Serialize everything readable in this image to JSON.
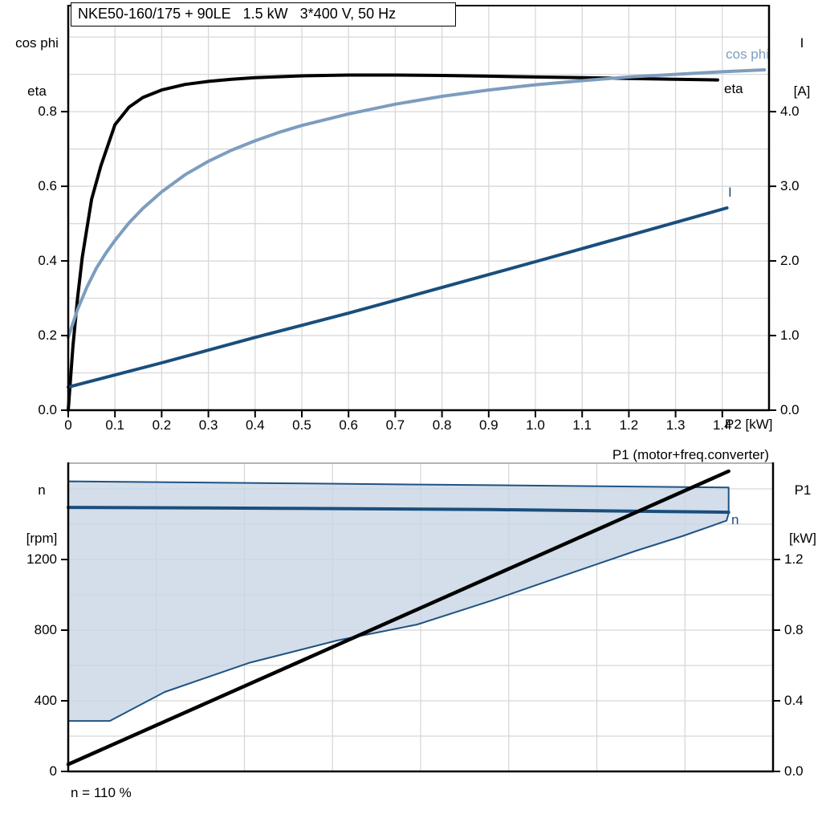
{
  "title": "NKE50-160/175 + 90LE   1.5 kW   3*400 V, 50 Hz",
  "footer_note": "n = 110 %",
  "colors": {
    "black": "#000000",
    "navy": "#1a4e7c",
    "steel": "#7d9dbe",
    "region_fill": "#c8d6e5",
    "region_edge": "#1f5382",
    "grid": "#d8d8d8",
    "chart2_top_border": "#9a9a9a"
  },
  "chart_data": [
    {
      "type": "line",
      "title": "NKE50-160/175 + 90LE   1.5 kW   3*400 V, 50 Hz",
      "x_axis": {
        "label": "P2 [kW]",
        "min": 0,
        "max": 1.5,
        "grid_step": 0.1,
        "tick_values": [
          0,
          0.1,
          0.2,
          0.3,
          0.4,
          0.5,
          0.6,
          0.7,
          0.8,
          0.9,
          1.0,
          1.1,
          1.2,
          1.3,
          1.4
        ],
        "tick_labels": [
          "0",
          "0.1",
          "0.2",
          "0.3",
          "0.4",
          "0.5",
          "0.6",
          "0.7",
          "0.8",
          "0.9",
          "1.0",
          "1.1",
          "1.2",
          "1.3",
          "1.4"
        ]
      },
      "y_left": {
        "header": [
          "cos phi",
          "eta"
        ],
        "min": 0,
        "max": 1.082,
        "grid_step": 0.1,
        "tick_values": [
          0,
          0.2,
          0.4,
          0.6,
          0.8
        ],
        "tick_labels": [
          "0.0",
          "0.2",
          "0.4",
          "0.6",
          "0.8"
        ]
      },
      "y_right": {
        "header": [
          "I",
          "[A]"
        ],
        "min": 0,
        "max": 5.41,
        "tick_values": [
          0,
          1,
          2,
          3,
          4
        ],
        "tick_labels": [
          "0.0",
          "1.0",
          "2.0",
          "3.0",
          "4.0"
        ]
      },
      "series": [
        {
          "name": "eta",
          "label": "eta",
          "axis": "left",
          "color": "black",
          "width": 4,
          "points": [
            [
              0,
              0
            ],
            [
              0.01,
              0.17
            ],
            [
              0.02,
              0.3
            ],
            [
              0.03,
              0.41
            ],
            [
              0.05,
              0.565
            ],
            [
              0.07,
              0.655
            ],
            [
              0.1,
              0.765
            ],
            [
              0.13,
              0.812
            ],
            [
              0.16,
              0.838
            ],
            [
              0.2,
              0.858
            ],
            [
              0.25,
              0.873
            ],
            [
              0.3,
              0.881
            ],
            [
              0.35,
              0.887
            ],
            [
              0.4,
              0.891
            ],
            [
              0.5,
              0.896
            ],
            [
              0.6,
              0.898
            ],
            [
              0.7,
              0.898
            ],
            [
              0.8,
              0.897
            ],
            [
              0.9,
              0.895
            ],
            [
              1.0,
              0.893
            ],
            [
              1.1,
              0.891
            ],
            [
              1.2,
              0.889
            ],
            [
              1.3,
              0.887
            ],
            [
              1.39,
              0.885
            ]
          ]
        },
        {
          "name": "cos-phi",
          "label": "cos phi",
          "axis": "left",
          "color": "steel",
          "width": 4,
          "points": [
            [
              0,
              0.195
            ],
            [
              0.02,
              0.27
            ],
            [
              0.04,
              0.33
            ],
            [
              0.06,
              0.38
            ],
            [
              0.08,
              0.42
            ],
            [
              0.1,
              0.455
            ],
            [
              0.13,
              0.502
            ],
            [
              0.16,
              0.541
            ],
            [
              0.2,
              0.585
            ],
            [
              0.25,
              0.631
            ],
            [
              0.3,
              0.667
            ],
            [
              0.35,
              0.697
            ],
            [
              0.4,
              0.722
            ],
            [
              0.45,
              0.744
            ],
            [
              0.5,
              0.763
            ],
            [
              0.6,
              0.794
            ],
            [
              0.7,
              0.82
            ],
            [
              0.8,
              0.841
            ],
            [
              0.9,
              0.858
            ],
            [
              1.0,
              0.872
            ],
            [
              1.1,
              0.883
            ],
            [
              1.2,
              0.893
            ],
            [
              1.3,
              0.9
            ],
            [
              1.4,
              0.907
            ],
            [
              1.49,
              0.912
            ]
          ]
        },
        {
          "name": "current",
          "label": "I",
          "axis": "right",
          "color": "navy",
          "width": 4,
          "points": [
            [
              0,
              0.31
            ],
            [
              0.2,
              0.635
            ],
            [
              0.4,
              0.975
            ],
            [
              0.6,
              1.3
            ],
            [
              0.8,
              1.645
            ],
            [
              1.0,
              1.99
            ],
            [
              1.2,
              2.34
            ],
            [
              1.41,
              2.71
            ]
          ]
        }
      ]
    },
    {
      "type": "line",
      "annotation": "P1 (motor+freq.converter)",
      "x_axis": {
        "label": "",
        "min": 0,
        "max": 1,
        "grid_step": 0.125,
        "tick_values": [],
        "tick_labels": []
      },
      "y_left": {
        "header": [
          "n",
          "[rpm]"
        ],
        "min": 0,
        "max": 1741,
        "grid_step": 200,
        "tick_values": [
          0,
          400,
          800,
          1200
        ],
        "tick_labels": [
          "0",
          "400",
          "800",
          "1200"
        ]
      },
      "y_right": {
        "header": [
          "P1",
          "[kW]"
        ],
        "min": 0,
        "max": 1.741,
        "tick_values": [
          0,
          0.4,
          0.8,
          1.2
        ],
        "tick_labels": [
          "0.0",
          "0.4",
          "0.8",
          "1.2"
        ]
      },
      "region": {
        "name": "speed-operating-envelope",
        "axis": "left",
        "points": [
          [
            0,
            1643
          ],
          [
            0.3,
            1632
          ],
          [
            0.6,
            1621
          ],
          [
            0.937,
            1608
          ],
          [
            0.937,
            1462
          ],
          [
            0.934,
            1420
          ],
          [
            0.871,
            1332
          ],
          [
            0.806,
            1250
          ],
          [
            0.7,
            1105
          ],
          [
            0.601,
            968
          ],
          [
            0.495,
            832
          ],
          [
            0.381,
            741
          ],
          [
            0.256,
            614
          ],
          [
            0.137,
            450
          ],
          [
            0.059,
            286
          ],
          [
            0,
            286
          ]
        ]
      },
      "series": [
        {
          "name": "speed",
          "label": "n",
          "axis": "left",
          "color": "navy",
          "width": 4,
          "points": [
            [
              0,
              1495
            ],
            [
              0.3,
              1490
            ],
            [
              0.6,
              1483
            ],
            [
              0.937,
              1468
            ]
          ]
        },
        {
          "name": "p1",
          "label": "P1 (motor+freq.converter)",
          "axis": "right",
          "color": "black",
          "width": 4.5,
          "points": [
            [
              0,
              0.04
            ],
            [
              0.937,
              1.7
            ]
          ]
        }
      ]
    }
  ]
}
